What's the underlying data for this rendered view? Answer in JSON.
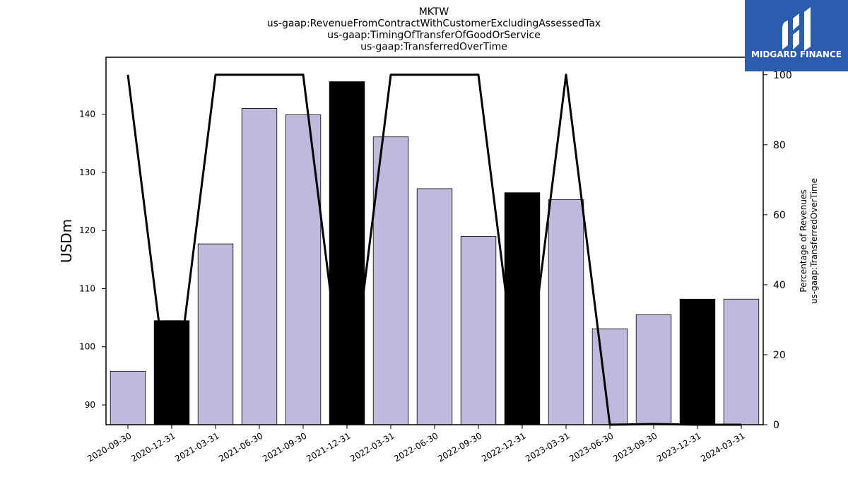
{
  "chart_data": {
    "type": "bar",
    "title_lines": [
      "MKTW",
      "us-gaap:RevenueFromContractWithCustomerExcludingAssessedTax",
      "us-gaap:TimingOfTransferOfGoodOrService",
      "us-gaap:TransferredOverTime"
    ],
    "categories": [
      "2020-09-30",
      "2020-12-31",
      "2021-03-31",
      "2021-06-30",
      "2021-09-30",
      "2021-12-31",
      "2022-03-31",
      "2022-06-30",
      "2022-09-30",
      "2022-12-31",
      "2023-03-31",
      "2023-06-30",
      "2023-09-30",
      "2023-12-31",
      "2024-03-31"
    ],
    "series": [
      {
        "type": "bar",
        "values": [
          95.8,
          104.5,
          117.7,
          141.0,
          139.9,
          145.6,
          136.1,
          127.2,
          119.0,
          126.5,
          125.3,
          103.1,
          105.5,
          108.2,
          108.2
        ],
        "colors": [
          "#bebadb",
          "#000000",
          "#bebadb",
          "#bebadb",
          "#bebadb",
          "#000000",
          "#bebadb",
          "#bebadb",
          "#bebadb",
          "#000000",
          "#bebadb",
          "#bebadb",
          "#bebadb",
          "#000000",
          "#bebadb"
        ]
      },
      {
        "type": "line",
        "axis": "right",
        "values": [
          100,
          0,
          100,
          100,
          100,
          0,
          100,
          100,
          100,
          0,
          100,
          0,
          0.2,
          0,
          0
        ],
        "color": "#000000"
      }
    ],
    "ylabel": "USDm",
    "ylim": [
      86.6,
      149.8
    ],
    "yticks": [
      90,
      100,
      110,
      120,
      130,
      140
    ],
    "y2label_lines": [
      "Percentage of Revenues",
      "us-gaap:TransferredOverTime"
    ],
    "y2lim": [
      0,
      105
    ],
    "y2ticks": [
      0,
      20,
      40,
      60,
      80,
      100
    ],
    "grid": false,
    "legend": "none"
  },
  "logo": {
    "text": "MIDGARD FINANCE",
    "bg_color": "#2b5caf"
  }
}
